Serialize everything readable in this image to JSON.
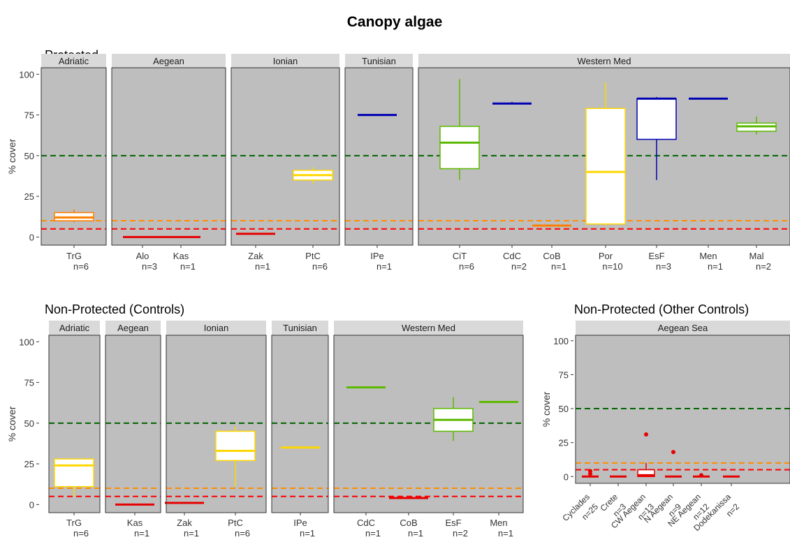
{
  "title": "Canopy algae",
  "colors": {
    "panel_bg": "#bebebe",
    "strip_bg": "#d9d9d9",
    "green_line": "#006400",
    "orange_line": "#ff8c00",
    "red_line": "#ff0000",
    "cover_green": "#5cb800",
    "cover_yellow": "#ffd700",
    "cover_orange": "#ff7f00",
    "cover_red": "#e60000",
    "cover_blue": "#0000b3"
  },
  "chart_data": [
    {
      "type": "boxplot",
      "title": "Protected",
      "ylabel": "% cover",
      "ylim": [
        -5,
        104
      ],
      "yticks": [
        0,
        25,
        50,
        75,
        100
      ],
      "grid": false,
      "reference_lines": [
        {
          "y": 50,
          "color": "green_line",
          "style": "dashed"
        },
        {
          "y": 10,
          "color": "orange_line",
          "style": "dashed"
        },
        {
          "y": 5,
          "color": "red_line",
          "style": "dashed"
        }
      ],
      "facets": [
        {
          "label": "Adriatic",
          "sites": [
            {
              "label": "TrG",
              "n": "n=6",
              "color": "cover_orange",
              "min": 9,
              "q1": 10,
              "median": 12,
              "q3": 15,
              "max": 17
            }
          ]
        },
        {
          "label": "Aegean",
          "sites": [
            {
              "label": "Alo",
              "n": "n=3",
              "color": "cover_red",
              "min": 0,
              "q1": 0,
              "median": 0,
              "q3": 0,
              "max": 0
            },
            {
              "label": "Kas",
              "n": "n=1",
              "color": "cover_red",
              "min": 0,
              "q1": 0,
              "median": 0,
              "q3": 0,
              "max": 0
            }
          ]
        },
        {
          "label": "Ionian",
          "sites": [
            {
              "label": "Zak",
              "n": "n=1",
              "color": "cover_red",
              "min": 2,
              "q1": 2,
              "median": 2,
              "q3": 2,
              "max": 2
            },
            {
              "label": "PtC",
              "n": "n=6",
              "color": "cover_yellow",
              "min": 33,
              "q1": 35,
              "median": 38,
              "q3": 41,
              "max": 43
            }
          ]
        },
        {
          "label": "Tunisian",
          "sites": [
            {
              "label": "IPe",
              "n": "n=1",
              "color": "cover_blue",
              "min": 75,
              "q1": 75,
              "median": 75,
              "q3": 75,
              "max": 75
            }
          ]
        },
        {
          "label": "Western Med",
          "sites": [
            {
              "label": "CiT",
              "n": "n=6",
              "color": "cover_green",
              "min": 35,
              "q1": 42,
              "median": 58,
              "q3": 68,
              "max": 97
            },
            {
              "label": "CdC",
              "n": "n=2",
              "color": "cover_blue",
              "min": 82,
              "q1": 82,
              "median": 82,
              "q3": 82,
              "max": 83
            },
            {
              "label": "CoB",
              "n": "n=1",
              "color": "cover_orange",
              "min": 7,
              "q1": 7,
              "median": 7,
              "q3": 7,
              "max": 7
            },
            {
              "label": "Por",
              "n": "n=10",
              "color": "cover_yellow",
              "min": 7,
              "q1": 8,
              "median": 40,
              "q3": 79,
              "max": 95
            },
            {
              "label": "EsF",
              "n": "n=3",
              "color": "cover_blue",
              "min": 35,
              "q1": 60,
              "median": 85,
              "q3": 85,
              "max": 86
            },
            {
              "label": "Men",
              "n": "n=1",
              "color": "cover_blue",
              "min": 85,
              "q1": 85,
              "median": 85,
              "q3": 85,
              "max": 85
            },
            {
              "label": "Mal",
              "n": "n=2",
              "color": "cover_green",
              "min": 63,
              "q1": 65,
              "median": 68,
              "q3": 70,
              "max": 74
            }
          ]
        }
      ]
    },
    {
      "type": "boxplot",
      "title": "Non-Protected (Controls)",
      "ylabel": "% cover",
      "ylim": [
        -5,
        104
      ],
      "yticks": [
        0,
        25,
        50,
        75,
        100
      ],
      "grid": false,
      "reference_lines": [
        {
          "y": 50,
          "color": "green_line",
          "style": "dashed"
        },
        {
          "y": 10,
          "color": "orange_line",
          "style": "dashed"
        },
        {
          "y": 5,
          "color": "red_line",
          "style": "dashed"
        }
      ],
      "facets": [
        {
          "label": "Adriatic",
          "sites": [
            {
              "label": "TrG",
              "n": "n=6",
              "color": "cover_yellow",
              "min": 5,
              "q1": 11,
              "median": 24,
              "q3": 28,
              "max": 28
            }
          ]
        },
        {
          "label": "Aegean",
          "sites": [
            {
              "label": "Kas",
              "n": "n=1",
              "color": "cover_red",
              "min": 0,
              "q1": 0,
              "median": 0,
              "q3": 0,
              "max": 0
            }
          ]
        },
        {
          "label": "Ionian",
          "sites": [
            {
              "label": "Zak",
              "n": "n=1",
              "color": "cover_red",
              "min": 1,
              "q1": 1,
              "median": 1,
              "q3": 1,
              "max": 1
            },
            {
              "label": "PtC",
              "n": "n=6",
              "color": "cover_yellow",
              "min": 11,
              "q1": 27,
              "median": 33,
              "q3": 45,
              "max": 48
            }
          ]
        },
        {
          "label": "Tunisian",
          "sites": [
            {
              "label": "IPe",
              "n": "n=1",
              "color": "cover_yellow",
              "min": 35,
              "q1": 35,
              "median": 35,
              "q3": 35,
              "max": 35
            }
          ]
        },
        {
          "label": "Western Med",
          "sites": [
            {
              "label": "CdC",
              "n": "n=1",
              "color": "cover_green",
              "min": 72,
              "q1": 72,
              "median": 72,
              "q3": 72,
              "max": 72
            },
            {
              "label": "CoB",
              "n": "n=1",
              "color": "cover_red",
              "min": 4,
              "q1": 4,
              "median": 4,
              "q3": 4,
              "max": 4
            },
            {
              "label": "EsF",
              "n": "n=2",
              "color": "cover_green",
              "min": 39,
              "q1": 45,
              "median": 52,
              "q3": 59,
              "max": 66
            },
            {
              "label": "Men",
              "n": "n=1",
              "color": "cover_green",
              "min": 63,
              "q1": 63,
              "median": 63,
              "q3": 63,
              "max": 63
            }
          ]
        }
      ]
    },
    {
      "type": "boxplot",
      "title": "Non-Protected (Other Controls)",
      "ylabel": "% cover",
      "ylim": [
        -5,
        104
      ],
      "yticks": [
        0,
        25,
        50,
        75,
        100
      ],
      "grid": false,
      "reference_lines": [
        {
          "y": 50,
          "color": "green_line",
          "style": "dashed"
        },
        {
          "y": 10,
          "color": "orange_line",
          "style": "dashed"
        },
        {
          "y": 5,
          "color": "red_line",
          "style": "dashed"
        }
      ],
      "facets": [
        {
          "label": "Aegean Sea",
          "sites": [
            {
              "label": "Cyclades",
              "n": "n=25",
              "color": "cover_red",
              "min": 0,
              "q1": 0,
              "median": 0,
              "q3": 0,
              "max": 0,
              "outliers": [
                2,
                4
              ]
            },
            {
              "label": "Crete",
              "n": "n=3",
              "color": "cover_red",
              "min": 0,
              "q1": 0,
              "median": 0,
              "q3": 0,
              "max": 0
            },
            {
              "label": "CW Aegean",
              "n": "n=13",
              "color": "cover_red",
              "min": 0,
              "q1": 0,
              "median": 1,
              "q3": 5,
              "max": 10,
              "outliers": [
                31
              ]
            },
            {
              "label": "N Aegean",
              "n": "n=9",
              "color": "cover_red",
              "min": 0,
              "q1": 0,
              "median": 0,
              "q3": 0,
              "max": 0,
              "outliers": [
                18
              ]
            },
            {
              "label": "NE Aegean",
              "n": "n=12",
              "color": "cover_red",
              "min": 0,
              "q1": 0,
              "median": 0,
              "q3": 0,
              "max": 0,
              "outliers": [
                1
              ]
            },
            {
              "label": "Dodekanissa",
              "n": "n=2",
              "color": "cover_red",
              "min": 0,
              "q1": 0,
              "median": 0,
              "q3": 0,
              "max": 0
            }
          ]
        }
      ]
    }
  ]
}
